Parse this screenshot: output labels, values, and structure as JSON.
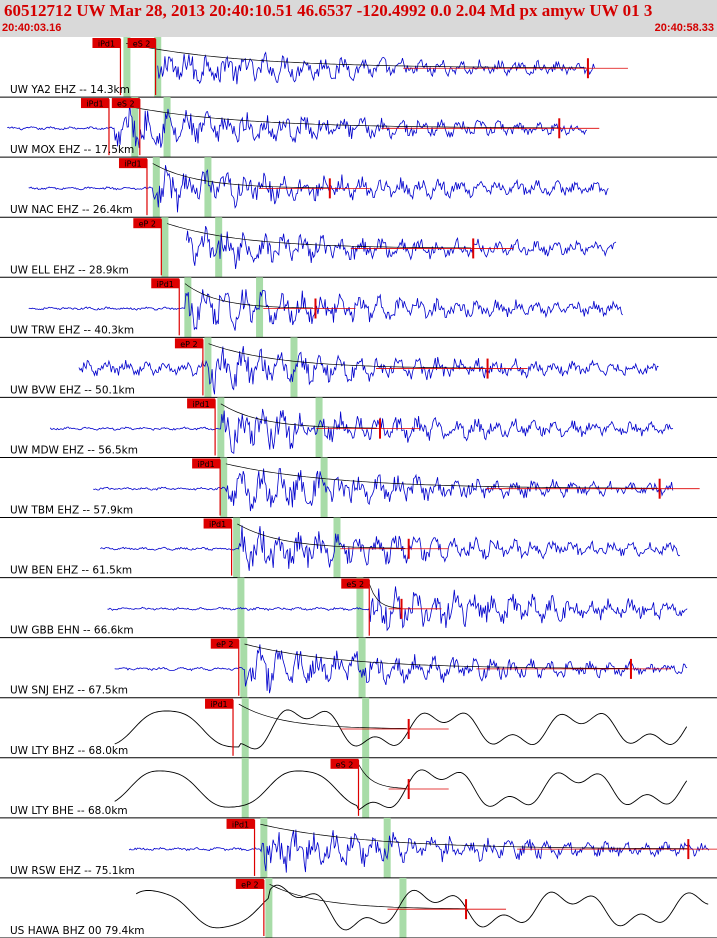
{
  "header": {
    "title": "60512712 UW Mar 28, 2013 20:40:10.51   46.6537 -120.4992  0.0 2.04 Md px amyw UW 01   3",
    "start_time": "20:40:03.16",
    "end_time": "20:40:58.33"
  },
  "colors": {
    "header_bg": "#d9d9d9",
    "header_text": "#d40000",
    "short_period_trace": "#0000cc",
    "broadband_trace": "#000000",
    "pick_marker": "#dd0000",
    "window_band": "#a8dca8",
    "coda_line": "#000000"
  },
  "chart_data": {
    "type": "line",
    "title": "60512712 UW Mar 28, 2013 20:40:10.51   46.6537 -120.4992  0.0 2.04 Md px amyw UW 01   3",
    "x_range_labels": [
      "20:40:03.16",
      "20:40:58.33"
    ],
    "traces": [
      {
        "label": "UW YA2 EHZ -- 14.3km",
        "kind": "short-period",
        "picks": [
          {
            "name": "iPd1",
            "t": 0.168
          },
          {
            "name": "eS 2",
            "t": 0.217
          }
        ],
        "bands": [
          0.177,
          0.22
        ],
        "signal": [
          0.22,
          0.83
        ],
        "coda_end": 0.82
      },
      {
        "label": "UW MOX EHZ -- 17.5km",
        "kind": "short-period",
        "picks": [
          {
            "name": "iPd1",
            "t": 0.152
          },
          {
            "name": "eS 2",
            "t": 0.195
          }
        ],
        "bands": [
          0.188,
          0.233
        ],
        "signal": [
          0.01,
          0.82
        ],
        "coda_end": 0.78
      },
      {
        "label": "UW NAC EHZ -- 26.4km",
        "kind": "short-period",
        "picks": [
          {
            "name": "iPd1",
            "t": 0.205
          }
        ],
        "bands": [
          0.218,
          0.29
        ],
        "signal": [
          0.04,
          0.85
        ],
        "coda_end": 0.46
      },
      {
        "label": "UW ELL EHZ -- 28.9km",
        "kind": "short-period",
        "picks": [
          {
            "name": "eP 2",
            "t": 0.225
          }
        ],
        "bands": [
          0.23,
          0.305
        ],
        "signal": [
          0.26,
          0.86
        ],
        "coda_end": 0.66
      },
      {
        "label": "UW TRW EHZ -- 40.3km",
        "kind": "short-period",
        "picks": [
          {
            "name": "iPd1",
            "t": 0.25
          }
        ],
        "bands": [
          0.262,
          0.362
        ],
        "signal": [
          0.04,
          0.87
        ],
        "coda_end": 0.44
      },
      {
        "label": "UW BVW EHZ -- 50.1km",
        "kind": "short-period",
        "picks": [
          {
            "name": "eP 2",
            "t": 0.283
          }
        ],
        "bands": [
          0.29,
          0.41
        ],
        "signal": [
          0.11,
          0.92
        ],
        "coda_end": 0.68
      },
      {
        "label": "UW MDW EHZ -- 56.5km",
        "kind": "short-period",
        "picks": [
          {
            "name": "iPd1",
            "t": 0.3
          }
        ],
        "bands": [
          0.308,
          0.445
        ],
        "signal": [
          0.07,
          0.94
        ],
        "coda_end": 0.53
      },
      {
        "label": "UW TBM EHZ -- 57.9km",
        "kind": "short-period",
        "picks": [
          {
            "name": "iPd1",
            "t": 0.307
          }
        ],
        "bands": [
          0.312,
          0.452
        ],
        "signal": [
          0.13,
          0.94
        ],
        "coda_end": 0.92
      },
      {
        "label": "UW BEN EHZ -- 61.5km",
        "kind": "short-period",
        "picks": [
          {
            "name": "iPd1",
            "t": 0.323
          }
        ],
        "bands": [
          0.33,
          0.47
        ],
        "signal": [
          0.14,
          0.95
        ],
        "coda_end": 0.57
      },
      {
        "label": "UW GBB EHN -- 66.6km",
        "kind": "short-period",
        "picks": [
          {
            "name": "eS 2",
            "t": 0.515
          }
        ],
        "bands": [
          0.336,
          0.502
        ],
        "signal": [
          0.15,
          0.96
        ],
        "coda_end": 0.56
      },
      {
        "label": "UW SNJ EHZ -- 67.5km",
        "kind": "short-period",
        "picks": [
          {
            "name": "eP 2",
            "t": 0.333
          }
        ],
        "bands": [
          0.34,
          0.505
        ],
        "signal": [
          0.16,
          0.96
        ],
        "coda_end": 0.88
      },
      {
        "label": "UW LTY BHZ -- 68.0km",
        "kind": "broadband",
        "picks": [
          {
            "name": "iPd1",
            "t": 0.325
          }
        ],
        "bands": [
          0.342,
          0.51
        ],
        "signal": [
          0.16,
          0.96
        ],
        "coda_end": 0.57
      },
      {
        "label": "UW LTY BHE -- 68.0km",
        "kind": "broadband",
        "picks": [
          {
            "name": "eS 2",
            "t": 0.5
          }
        ],
        "bands": [
          0.342,
          0.51
        ],
        "signal": [
          0.16,
          0.96
        ],
        "coda_end": 0.57
      },
      {
        "label": "UW RSW EHZ -- 75.1km",
        "kind": "short-period",
        "picks": [
          {
            "name": "iPd1",
            "t": 0.355
          }
        ],
        "bands": [
          0.368,
          0.54
        ],
        "signal": [
          0.18,
          0.99
        ],
        "coda_end": 0.96
      },
      {
        "label": "US HAWA BHZ 00 79.4km",
        "kind": "broadband",
        "picks": [
          {
            "name": "eP 2",
            "t": 0.368
          }
        ],
        "bands": [
          0.375,
          0.562
        ],
        "signal": [
          0.19,
          0.99
        ],
        "coda_end": 0.65
      }
    ]
  }
}
